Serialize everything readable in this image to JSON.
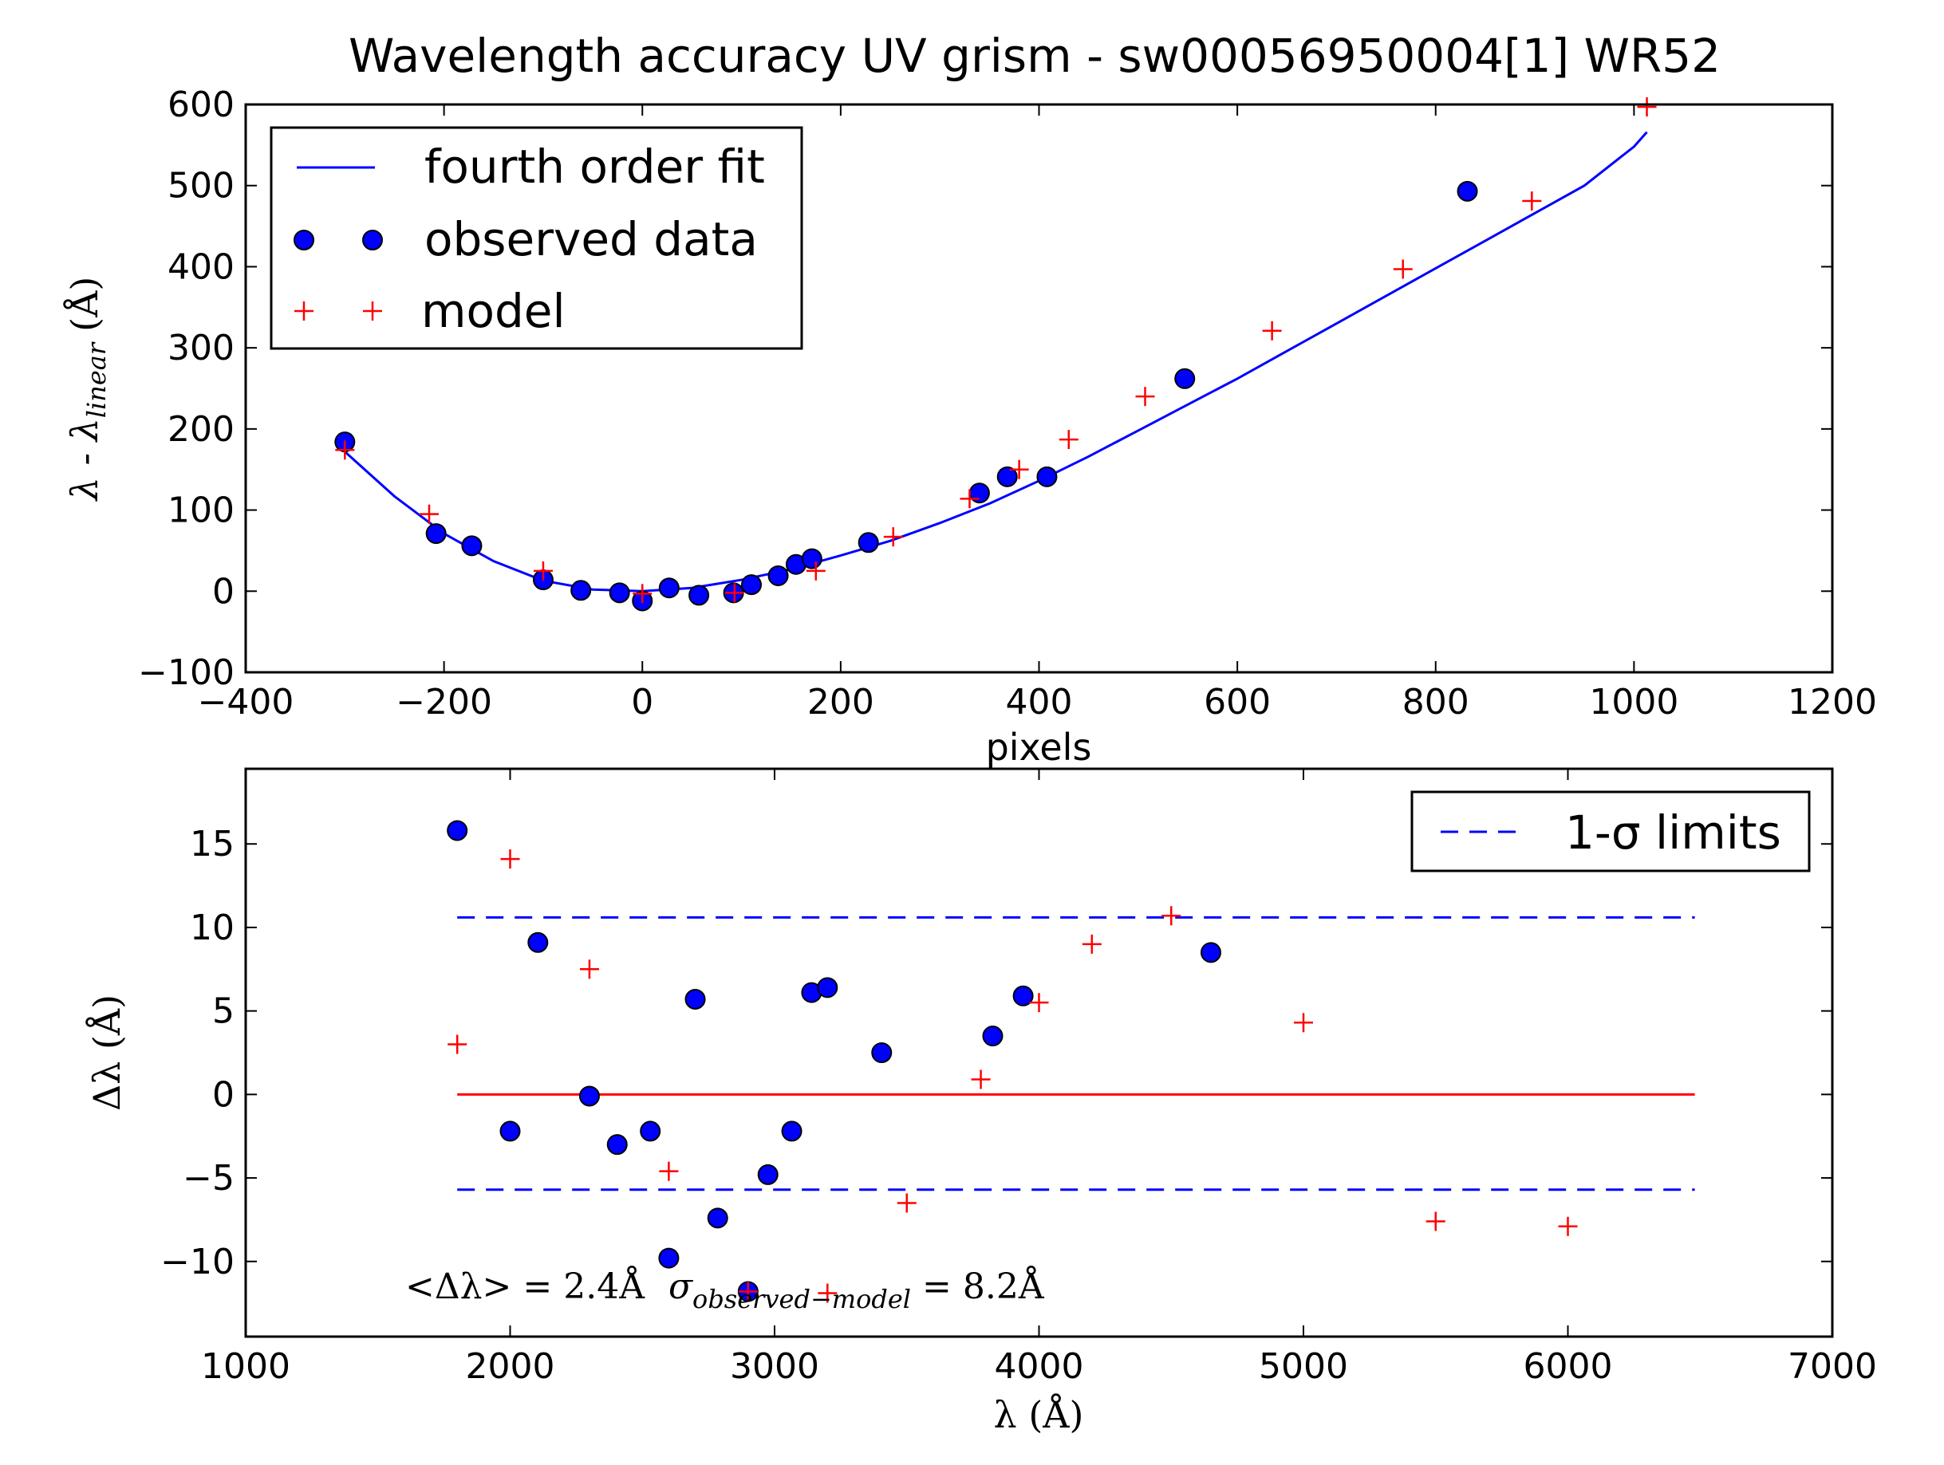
{
  "figure": {
    "title": "Wavelength accuracy UV grism - sw00056950004[1] WR52"
  },
  "chart_data": [
    {
      "type": "scatter",
      "xlabel": "pixels",
      "ylabel_main": "λ - λ",
      "ylabel_sub": "linear",
      "ylabel_unit": "(Å)",
      "xlim": [
        -400,
        1200
      ],
      "ylim": [
        -100,
        600
      ],
      "xticks": [
        "−400",
        "−200",
        "0",
        "200",
        "400",
        "600",
        "800",
        "1000",
        "1200"
      ],
      "yticks": [
        "−100",
        "0",
        "100",
        "200",
        "300",
        "400",
        "500",
        "600"
      ],
      "legend_placement": "upper-left",
      "series": [
        {
          "name": "fourth order fit",
          "style": "line",
          "color": "#0000ff",
          "x": [
            -300,
            -250,
            -200,
            -150,
            -100,
            -50,
            0,
            50,
            100,
            150,
            200,
            250,
            300,
            350,
            400,
            450,
            500,
            550,
            600,
            650,
            700,
            750,
            800,
            850,
            900,
            950,
            1000,
            1013
          ],
          "y": [
            172,
            117,
            71,
            37,
            13,
            2,
            0,
            4,
            14,
            27,
            44,
            62,
            84,
            108,
            136,
            166,
            198,
            230,
            262,
            296,
            330,
            364,
            398,
            432,
            466,
            500,
            548,
            566
          ]
        },
        {
          "name": "observed data",
          "style": "marker-circle",
          "color": "#0000ff",
          "x": [
            -300,
            -208,
            -172,
            -100,
            -62,
            -23,
            0,
            27,
            57,
            92,
            110,
            137,
            155,
            171,
            228,
            340,
            368,
            408,
            547,
            832
          ],
          "y": [
            184,
            71,
            56,
            14,
            1,
            -2,
            -12,
            4,
            -5,
            -2,
            8,
            19,
            33,
            40,
            60,
            121,
            141,
            141,
            262,
            493
          ]
        },
        {
          "name": "model",
          "style": "marker-plus",
          "color": "#ff0000",
          "x": [
            -300,
            -215,
            -100,
            0,
            93,
            175,
            253,
            330,
            380,
            430,
            507,
            635,
            767,
            897,
            1013
          ],
          "y": [
            174,
            95,
            25,
            -3,
            -2,
            25,
            67,
            114,
            150,
            187,
            240,
            321,
            397,
            481,
            597
          ]
        }
      ]
    },
    {
      "type": "scatter",
      "xlabel": "λ (Å)",
      "ylabel": "Δλ (Å)",
      "xlim": [
        1000,
        7000
      ],
      "ylim": [
        -14.5,
        19.5
      ],
      "xticks": [
        "1000",
        "2000",
        "3000",
        "4000",
        "5000",
        "6000",
        "7000"
      ],
      "yticks": [
        "−10",
        "−5",
        "0",
        "5",
        "10",
        "15"
      ],
      "legend_placement": "upper-right",
      "annotation": {
        "prefix": "<Δλ> = 2.4Å",
        "sigma": "σ",
        "subscript": "observed−model",
        "suffix": "= 8.2Å"
      },
      "zero_line": {
        "y": 0,
        "x_range": [
          1800,
          6480
        ],
        "color": "#ff0000"
      },
      "series": [
        {
          "name": "1-σ limits",
          "style": "dashed-line",
          "color": "#0000ff",
          "lines": [
            {
              "y": 10.6,
              "x_range": [
                1800,
                6480
              ]
            },
            {
              "y": -5.7,
              "x_range": [
                1800,
                6480
              ]
            }
          ]
        },
        {
          "style": "marker-circle",
          "color": "#0000ff",
          "x": [
            1800,
            2000,
            2105,
            2300,
            2405,
            2530,
            2600,
            2700,
            2785,
            2900,
            2975,
            3065,
            3140,
            3200,
            3405,
            3825,
            3940,
            4650
          ],
          "y": [
            15.8,
            -2.2,
            9.1,
            -0.1,
            -3.0,
            -2.2,
            -9.8,
            5.7,
            -7.4,
            -11.8,
            -4.8,
            -2.2,
            6.1,
            6.4,
            2.5,
            3.5,
            5.9,
            8.5
          ]
        },
        {
          "style": "marker-plus",
          "color": "#ff0000",
          "x": [
            1800,
            2000,
            2300,
            2600,
            2900,
            3200,
            3500,
            3780,
            4000,
            4200,
            4500,
            5000,
            5500,
            6000
          ],
          "y": [
            3.0,
            14.1,
            7.5,
            -4.6,
            -11.8,
            -11.9,
            -6.5,
            0.9,
            5.5,
            9.0,
            10.7,
            4.3,
            -7.6,
            -7.9
          ]
        }
      ]
    }
  ]
}
